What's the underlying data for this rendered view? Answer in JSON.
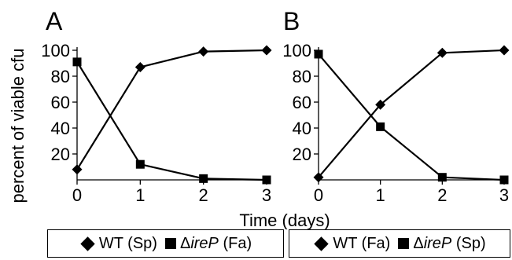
{
  "chart_data": [
    {
      "type": "line",
      "panel": "A",
      "ylabel": "percent of viable cfu",
      "xlabel": "Time (days)",
      "x": [
        0,
        1,
        2,
        3
      ],
      "xticks": [
        "0",
        "1",
        "2",
        "3"
      ],
      "yticks": [
        "20",
        "40",
        "60",
        "80",
        "100"
      ],
      "ylim": [
        0,
        100
      ],
      "series": [
        {
          "name": "WT (Sp)",
          "marker": "diamond",
          "values": [
            8,
            87,
            99,
            100
          ]
        },
        {
          "name": "ΔireP (Fa)",
          "marker": "square",
          "values": [
            91,
            12,
            1,
            0
          ]
        }
      ]
    },
    {
      "type": "line",
      "panel": "B",
      "x": [
        0,
        1,
        2,
        3
      ],
      "xticks": [
        "0",
        "1",
        "2",
        "3"
      ],
      "yticks": [
        "20",
        "40",
        "60",
        "80",
        "100"
      ],
      "ylim": [
        0,
        100
      ],
      "series": [
        {
          "name": "WT (Fa)",
          "marker": "diamond",
          "values": [
            2,
            58,
            98,
            100
          ]
        },
        {
          "name": "ΔireP (Sp)",
          "marker": "square",
          "values": [
            97,
            41,
            2,
            0
          ]
        }
      ]
    }
  ],
  "legends": [
    {
      "wt_label": "WT (Sp)",
      "mut_delta": "Δ",
      "mut_name": "ireP",
      "mut_cond": " (Fa)"
    },
    {
      "wt_label": "WT (Fa)",
      "mut_delta": "Δ",
      "mut_name": "ireP",
      "mut_cond": " (Sp)"
    }
  ]
}
